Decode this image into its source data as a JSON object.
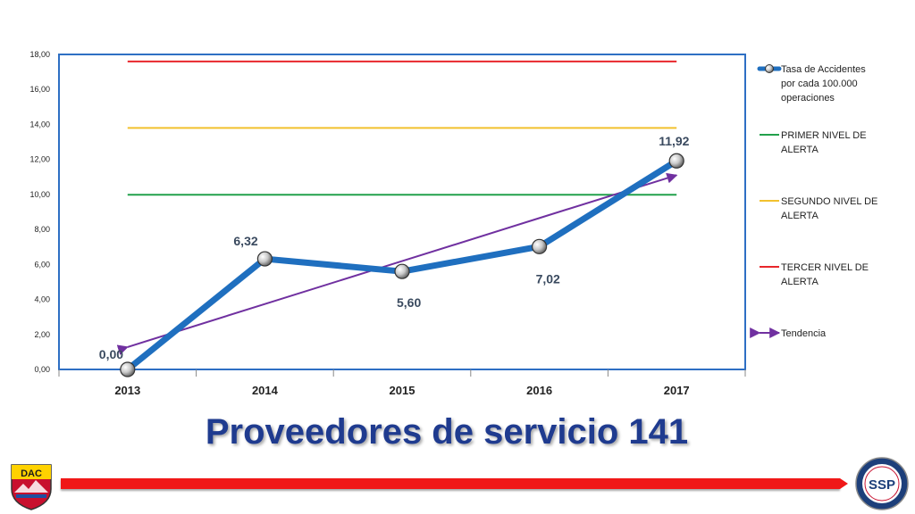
{
  "slide": {
    "title": "Proveedores de servicio 141"
  },
  "logos": {
    "left_text": "DAC",
    "right_text": "SSP"
  },
  "chart_data": {
    "type": "line",
    "title": "",
    "xlabel": "",
    "ylabel": "",
    "categories": [
      "2013",
      "2014",
      "2015",
      "2016",
      "2017"
    ],
    "ylim": [
      0,
      18
    ],
    "ytick_labels": [
      "0,00",
      "2,00",
      "4,00",
      "6,00",
      "8,00",
      "10,00",
      "12,00",
      "14,00",
      "16,00",
      "18,00"
    ],
    "series": [
      {
        "name": "Tasa de Accidentes por cada 100.000 operaciones",
        "values": [
          0.0,
          6.32,
          5.6,
          7.02,
          11.92
        ],
        "value_labels": [
          "0,00",
          "6,32",
          "5,60",
          "7,02",
          "11,92"
        ],
        "color": "#1f6fbf"
      },
      {
        "name": "PRIMER NIVEL DE ALERTA",
        "values": [
          9.98,
          9.98,
          9.98,
          9.98,
          9.98
        ],
        "color": "#22a04b"
      },
      {
        "name": "SEGUNDO NIVEL DE ALERTA",
        "values": [
          13.8,
          13.8,
          13.8,
          13.8,
          13.8
        ],
        "color": "#f2c12e"
      },
      {
        "name": "TERCER NIVEL DE ALERTA",
        "values": [
          17.6,
          17.6,
          17.6,
          17.6,
          17.6
        ],
        "color": "#e8262b"
      },
      {
        "name": "Tendencia",
        "values": [
          1.28,
          3.74,
          6.19,
          8.65,
          11.1
        ],
        "color": "#7030a0"
      }
    ],
    "legend_position": "right",
    "grid": false
  }
}
